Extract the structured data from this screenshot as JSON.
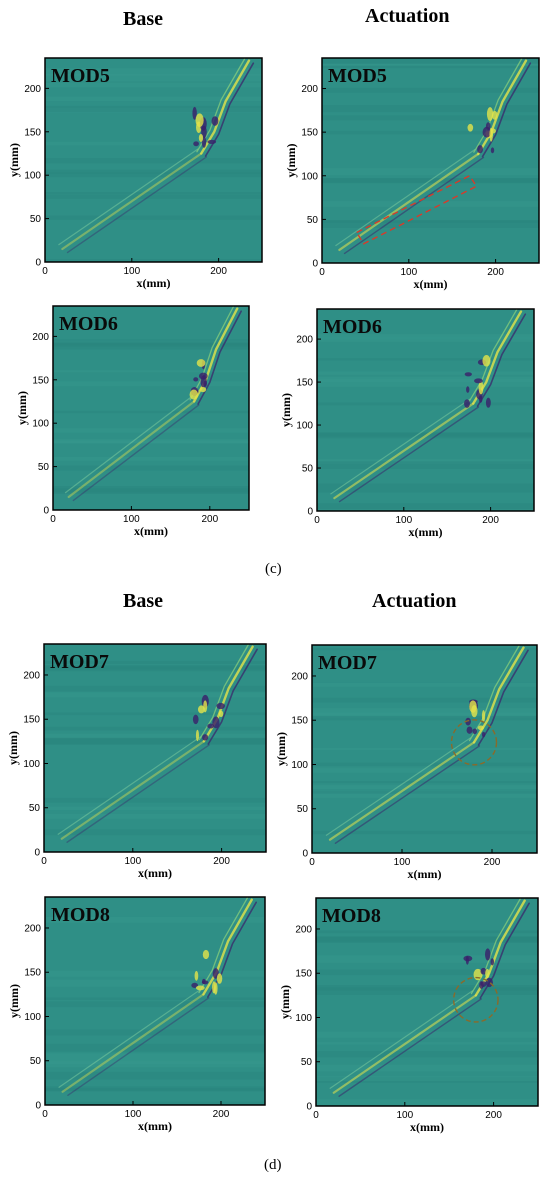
{
  "sections": [
    {
      "label": "(c)",
      "headers": [
        "Base",
        "Actuation"
      ],
      "panels": [
        {
          "mode": "MOD5",
          "variant": "base",
          "annotation": "none"
        },
        {
          "mode": "MOD5",
          "variant": "actuation",
          "annotation": "dashed-rectangle"
        },
        {
          "mode": "MOD6",
          "variant": "base",
          "annotation": "none"
        },
        {
          "mode": "MOD6",
          "variant": "actuation",
          "annotation": "none"
        }
      ]
    },
    {
      "label": "(d)",
      "headers": [
        "Base",
        "Actuation"
      ],
      "panels": [
        {
          "mode": "MOD7",
          "variant": "base",
          "annotation": "none"
        },
        {
          "mode": "MOD7",
          "variant": "actuation",
          "annotation": "dashed-circle"
        },
        {
          "mode": "MOD8",
          "variant": "base",
          "annotation": "none"
        },
        {
          "mode": "MOD8",
          "variant": "actuation",
          "annotation": "dashed-circle"
        }
      ]
    }
  ],
  "axes": {
    "xlabel": "x(mm)",
    "ylabel": "y(mm)",
    "x_ticks": [
      "0",
      "100",
      "200"
    ],
    "y_ticks": [
      "0",
      "50",
      "100",
      "150",
      "200"
    ]
  },
  "colors": {
    "field_background": "#2f8f86",
    "positive": "#e3e34a",
    "negative": "#3a1f6a",
    "annotation_rect": "#d83a2a",
    "annotation_circle": "#8a6a2a"
  }
}
